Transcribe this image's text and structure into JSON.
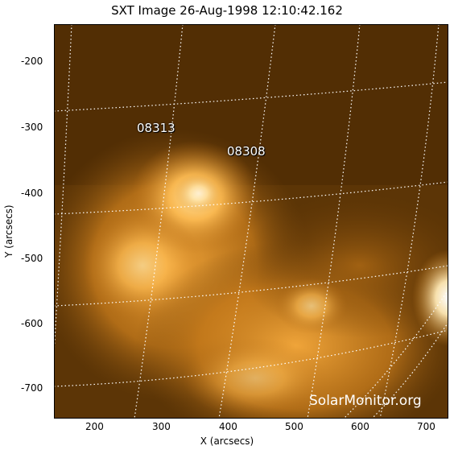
{
  "title": "SXT Image 26-Aug-1998 12:10:42.162",
  "axes": {
    "x_label": "X (arcsecs)",
    "y_label": "Y (arcsecs)",
    "x_ticks": [
      "200",
      "300",
      "400",
      "500",
      "600",
      "700"
    ],
    "y_ticks": [
      "-200",
      "-300",
      "-400",
      "-500",
      "-600",
      "-700"
    ]
  },
  "regions": [
    {
      "label": "08313"
    },
    {
      "label": "08308"
    }
  ],
  "watermark": "SolarMonitor.org",
  "colors": {
    "background": "#5a3305",
    "bright": "#ffb84a",
    "grid": "#ffffff"
  }
}
